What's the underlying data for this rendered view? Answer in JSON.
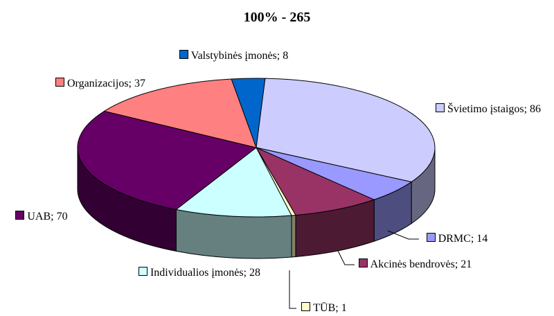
{
  "chart_data": {
    "type": "pie3d",
    "title": "100% - 265",
    "values": [
      8,
      86,
      14,
      21,
      1,
      28,
      70,
      37
    ],
    "value_labels": [
      "Valstybinės įmonės; 8",
      "Švietimo įstaigos; 86",
      "DRMC; 14",
      "Akcinės bendrovės; 21",
      "TŪB; 1",
      "Individualios įmonės; 28",
      "UAB; 70",
      "Organizacijos; 37"
    ],
    "colors": [
      "#0066cc",
      "#ccccff",
      "#9999ff",
      "#993366",
      "#ffffcc",
      "#ccffff",
      "#660066",
      "#ff8080"
    ]
  }
}
